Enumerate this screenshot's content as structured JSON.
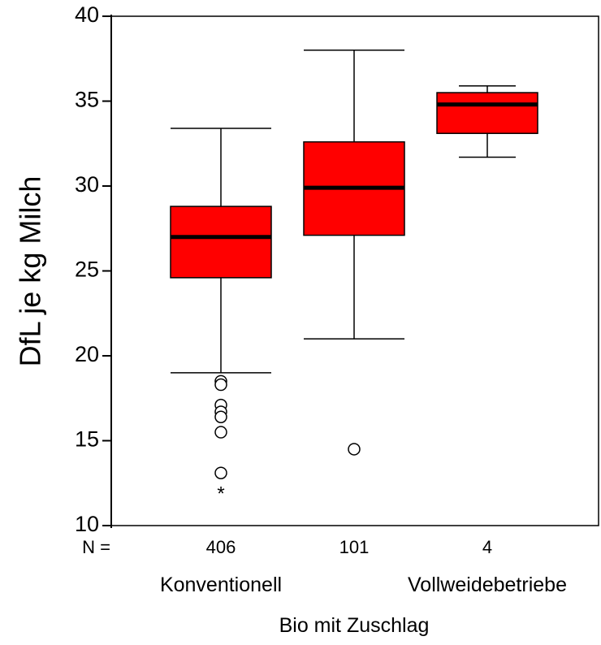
{
  "chart_data": {
    "type": "boxplot",
    "ylabel": "DfL je kg Milch",
    "ylim": [
      10,
      40
    ],
    "yticks": [
      10,
      15,
      20,
      25,
      30,
      35,
      40
    ],
    "n_label": "N =",
    "groups": [
      {
        "name": "Konventionell",
        "n": "406",
        "min": 19.0,
        "q1": 24.6,
        "median": 27.0,
        "q3": 28.8,
        "max": 33.4,
        "outliers": [
          18.5,
          18.3,
          17.1,
          16.7,
          16.4,
          15.5,
          13.1
        ],
        "extremes": [
          11.9
        ]
      },
      {
        "name": "Bio mit Zuschlag",
        "n": "101",
        "min": 21.0,
        "q1": 27.1,
        "median": 29.9,
        "q3": 32.6,
        "max": 38.0,
        "outliers": [
          14.5
        ],
        "extremes": []
      },
      {
        "name": "Vollweidebetriebe",
        "n": "4",
        "min": 31.7,
        "q1": 33.1,
        "median": 34.8,
        "q3": 35.5,
        "max": 35.9,
        "outliers": [],
        "extremes": []
      }
    ],
    "colors": {
      "box_fill": "#ff0000",
      "box_stroke": "#000000",
      "median": "#000000"
    },
    "grid": false,
    "legend": "none"
  }
}
